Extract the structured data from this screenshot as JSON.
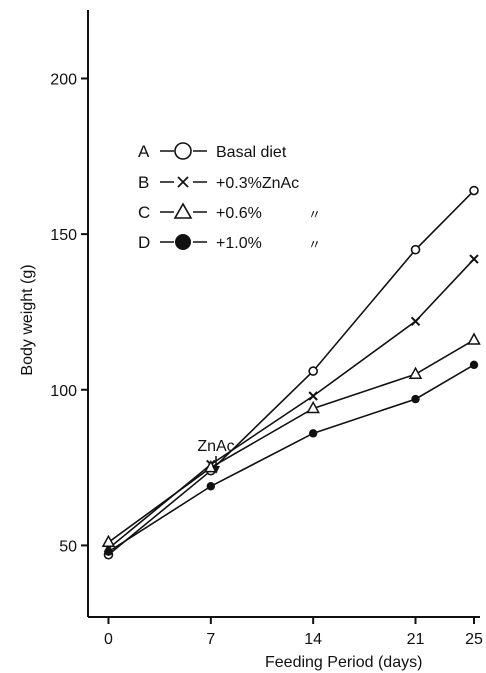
{
  "chart_data": {
    "type": "line",
    "xlabel": "Feeding Period (days)",
    "ylabel": "Body weight (g)",
    "x_ticks": [
      0,
      7,
      14,
      21,
      25
    ],
    "y_ticks": [
      50,
      100,
      150,
      200
    ],
    "xlim": [
      -1.4,
      25
    ],
    "ylim": [
      27,
      222
    ],
    "grid": false,
    "legend_position": "top-left",
    "series": [
      {
        "key": "A",
        "name": "Basal diet",
        "marker": "open-circle",
        "x": [
          0,
          7,
          14,
          21,
          25
        ],
        "y": [
          47,
          74,
          106,
          145,
          164
        ]
      },
      {
        "key": "B",
        "name": "+0.3%ZnAc",
        "marker": "cross",
        "x": [
          0,
          7,
          14,
          21,
          25
        ],
        "y": [
          49,
          76,
          98,
          122,
          142
        ]
      },
      {
        "key": "C",
        "name": "+0.6%",
        "marker": "open-triangle",
        "x": [
          0,
          7,
          14,
          21,
          25
        ],
        "y": [
          51,
          75,
          94,
          105,
          116
        ]
      },
      {
        "key": "D",
        "name": "+1.0%",
        "marker": "filled-circle",
        "x": [
          0,
          7,
          14,
          21,
          25
        ],
        "y": [
          48,
          69,
          86,
          97,
          108
        ]
      }
    ],
    "legend_ditto_marks": [
      "〃",
      "〃"
    ],
    "annotations": [
      {
        "text": "ZnAc",
        "x": 7,
        "arrow": "down"
      }
    ]
  }
}
